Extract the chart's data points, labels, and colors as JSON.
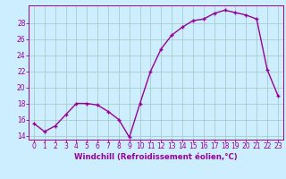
{
  "hours": [
    0,
    1,
    2,
    3,
    4,
    5,
    6,
    7,
    8,
    9,
    10,
    11,
    12,
    13,
    14,
    15,
    16,
    17,
    18,
    19,
    20,
    21,
    22,
    23
  ],
  "values": [
    15.5,
    14.5,
    15.2,
    16.6,
    18.0,
    18.0,
    17.8,
    17.0,
    16.0,
    13.8,
    18.0,
    22.0,
    24.8,
    26.5,
    27.5,
    28.3,
    28.5,
    29.2,
    29.6,
    29.3,
    29.0,
    28.5,
    22.2,
    19.0
  ],
  "line_color": "#990099",
  "marker": "+",
  "background_color": "#cceeff",
  "grid_color": "#aacccc",
  "xlabel": "Windchill (Refroidissement éolien,°C)",
  "xlabel_color": "#990099",
  "tick_color": "#990099",
  "ylim": [
    13.5,
    30.2
  ],
  "xlim": [
    -0.5,
    23.5
  ],
  "yticks": [
    14,
    16,
    18,
    20,
    22,
    24,
    26,
    28
  ],
  "xticks": [
    0,
    1,
    2,
    3,
    4,
    5,
    6,
    7,
    8,
    9,
    10,
    11,
    12,
    13,
    14,
    15,
    16,
    17,
    18,
    19,
    20,
    21,
    22,
    23
  ],
  "marker_size": 3.5,
  "line_width": 1.0,
  "tick_fontsize": 5.5,
  "xlabel_fontsize": 6.2,
  "xlabel_fontweight": "bold"
}
